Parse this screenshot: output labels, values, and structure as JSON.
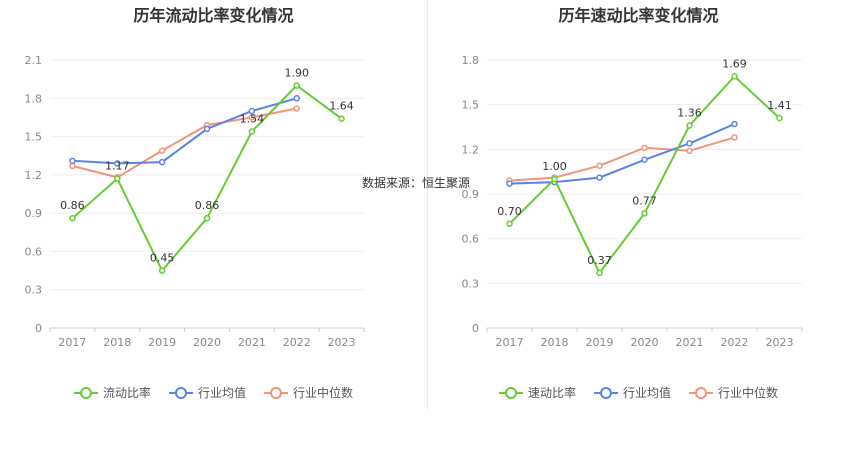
{
  "source": "数据来源：恒生聚源",
  "colors": {
    "main": "#66cc33",
    "avg": "#5b82e6",
    "median": "#f0957a"
  },
  "chart_data": [
    {
      "type": "line",
      "title": "历年流动比率变化情况",
      "categories": [
        "2017",
        "2018",
        "2019",
        "2020",
        "2021",
        "2022",
        "2023"
      ],
      "ylim": [
        0,
        2.1
      ],
      "yticks": [
        "0",
        "0.3",
        "0.6",
        "0.9",
        "1.2",
        "1.5",
        "1.8",
        "2.1"
      ],
      "grid": true,
      "legend_position": "bottom",
      "series": [
        {
          "name": "流动比率",
          "color": "#66cc33",
          "values": [
            0.86,
            1.17,
            0.45,
            0.86,
            1.54,
            1.9,
            1.64
          ],
          "labels": [
            "0.86",
            "1.17",
            "0.45",
            "0.86",
            "1.54",
            "1.90",
            "1.64"
          ]
        },
        {
          "name": "行业均值",
          "color": "#5b82e6",
          "values": [
            1.31,
            1.29,
            1.3,
            1.56,
            1.7,
            1.8,
            null
          ]
        },
        {
          "name": "行业中位数",
          "color": "#f0957a",
          "values": [
            1.27,
            1.18,
            1.39,
            1.59,
            1.65,
            1.72,
            null
          ]
        }
      ]
    },
    {
      "type": "line",
      "title": "历年速动比率变化情况",
      "categories": [
        "2017",
        "2018",
        "2019",
        "2020",
        "2021",
        "2022",
        "2023"
      ],
      "ylim": [
        0,
        1.8
      ],
      "yticks": [
        "0",
        "0.3",
        "0.6",
        "0.9",
        "1.2",
        "1.5",
        "1.8"
      ],
      "grid": true,
      "legend_position": "bottom",
      "series": [
        {
          "name": "速动比率",
          "color": "#66cc33",
          "values": [
            0.7,
            1.0,
            0.37,
            0.77,
            1.36,
            1.69,
            1.41
          ],
          "labels": [
            "0.70",
            "1.00",
            "0.37",
            "0.77",
            "1.36",
            "1.69",
            "1.41"
          ]
        },
        {
          "name": "行业均值",
          "color": "#5b82e6",
          "values": [
            0.97,
            0.98,
            1.01,
            1.13,
            1.24,
            1.37,
            null
          ]
        },
        {
          "name": "行业中位数",
          "color": "#f0957a",
          "values": [
            0.99,
            1.01,
            1.09,
            1.21,
            1.19,
            1.28,
            null
          ]
        }
      ]
    }
  ]
}
